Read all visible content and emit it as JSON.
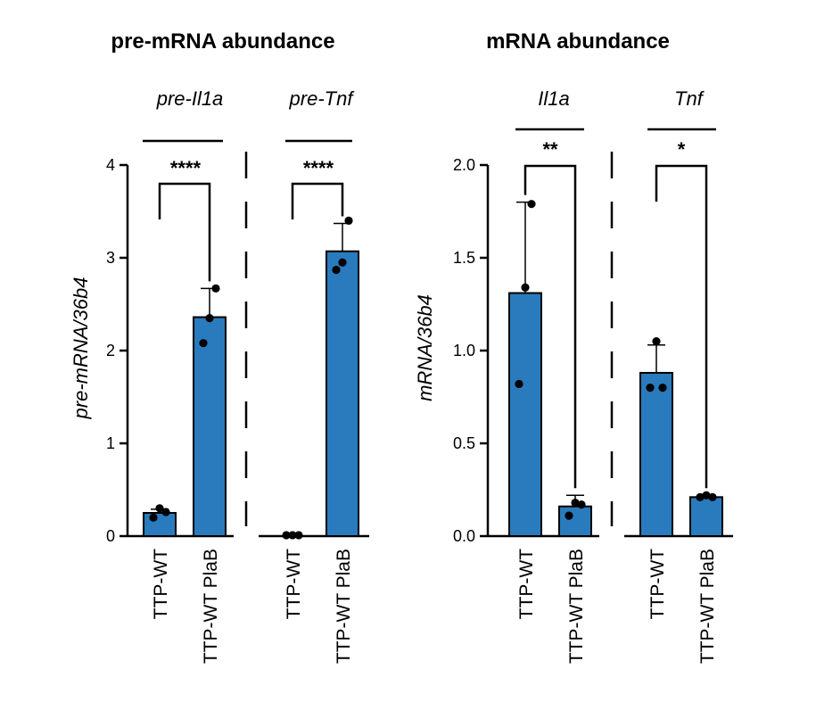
{
  "colors": {
    "bar": "#2a7bbd",
    "stroke": "#000000"
  },
  "chart_data": [
    {
      "type": "bar",
      "title": "pre-mRNA abundance",
      "ylabel": "pre-mRNA/36b4",
      "ylim": [
        0,
        4
      ],
      "yticks": [
        0,
        1,
        2,
        3,
        4
      ],
      "ytick_labels": [
        "0",
        "1",
        "2",
        "3",
        "4"
      ],
      "groups": [
        {
          "label": "pre-Il1a",
          "significance": "****",
          "categories": [
            "TTP-WT",
            "TTP-WT PlaB"
          ],
          "values": [
            0.25,
            2.36
          ],
          "errors": [
            0.04,
            0.31
          ],
          "points": [
            [
              0.2,
              0.3,
              0.26
            ],
            [
              2.08,
              2.35,
              2.67
            ]
          ]
        },
        {
          "label": "pre-Tnf",
          "significance": "****",
          "categories": [
            "TTP-WT",
            "TTP-WT PlaB"
          ],
          "values": [
            0.01,
            3.07
          ],
          "errors": [
            0.0,
            0.3
          ],
          "points": [
            [
              0.01,
              0.01,
              0.01
            ],
            [
              2.87,
              2.95,
              3.4
            ]
          ]
        }
      ]
    },
    {
      "type": "bar",
      "title": "mRNA abundance",
      "ylabel": "mRNA/36b4",
      "ylim": [
        0,
        2
      ],
      "yticks": [
        0,
        0.5,
        1,
        1.5,
        2
      ],
      "ytick_labels": [
        "0.0",
        "0.5",
        "1.0",
        "1.5",
        "2.0"
      ],
      "groups": [
        {
          "label": "Il1a",
          "significance": "**",
          "categories": [
            "TTP-WT",
            "TTP-WT PlaB"
          ],
          "values": [
            1.31,
            0.16
          ],
          "errors": [
            0.49,
            0.06
          ],
          "points": [
            [
              0.82,
              1.34,
              1.79
            ],
            [
              0.11,
              0.18,
              0.17
            ]
          ]
        },
        {
          "label": "Tnf",
          "significance": "*",
          "categories": [
            "TTP-WT",
            "TTP-WT PlaB"
          ],
          "values": [
            0.88,
            0.21
          ],
          "errors": [
            0.15,
            0.01
          ],
          "points": [
            [
              0.8,
              1.05,
              0.8
            ],
            [
              0.21,
              0.22,
              0.21
            ]
          ]
        }
      ]
    }
  ]
}
